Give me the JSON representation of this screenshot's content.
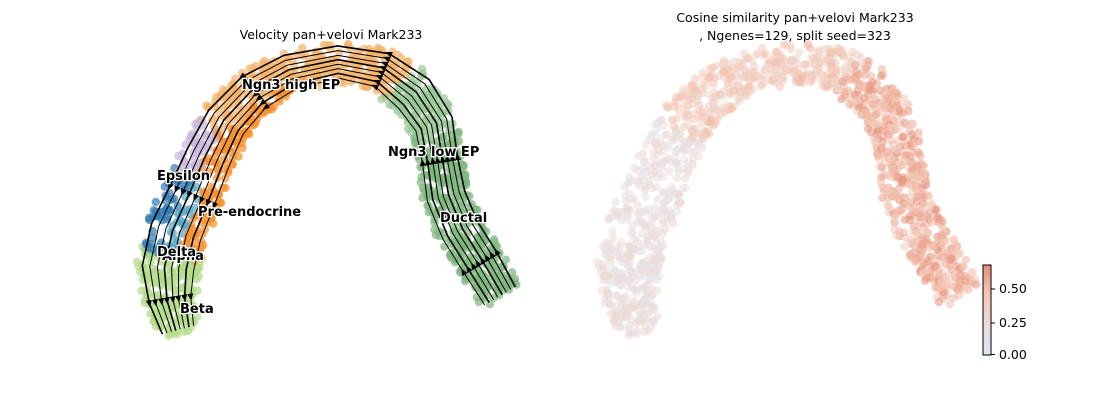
{
  "chart_data": [
    {
      "type": "scatter",
      "title": "Velocity pan+velovi Mark233",
      "subtitle": "",
      "xlabel": "",
      "ylabel": "",
      "grid": false,
      "legend": "on-data cluster labels",
      "clusters": [
        {
          "name": "Ngn3 high EP",
          "color": "#f5b36b"
        },
        {
          "name": "Ngn3 low EP",
          "color": "#98c795"
        },
        {
          "name": "Ductal",
          "color": "#7fb57e"
        },
        {
          "name": "Pre-endocrine",
          "color": "#f7922c"
        },
        {
          "name": "Epsilon",
          "color": "#c9b6db"
        },
        {
          "name": "Alpha",
          "color": "#2d7ab5"
        },
        {
          "name": "Delta",
          "color": "#58a8c8"
        },
        {
          "name": "Beta",
          "color": "#b4dc8a"
        }
      ],
      "overlay": "velocity streamlines"
    },
    {
      "type": "scatter",
      "title": "Cosine similarity pan+velovi Mark233",
      "subtitle": ", Ngenes=129, split seed=323",
      "xlabel": "",
      "ylabel": "",
      "grid": false,
      "colorbar": {
        "min": 0.0,
        "max": 0.65,
        "ticks": [
          "0.00",
          "0.25",
          "0.50"
        ],
        "colors": [
          "#dde6f7",
          "#eddcd6",
          "#f4c4b0",
          "#e58d78"
        ]
      }
    }
  ]
}
